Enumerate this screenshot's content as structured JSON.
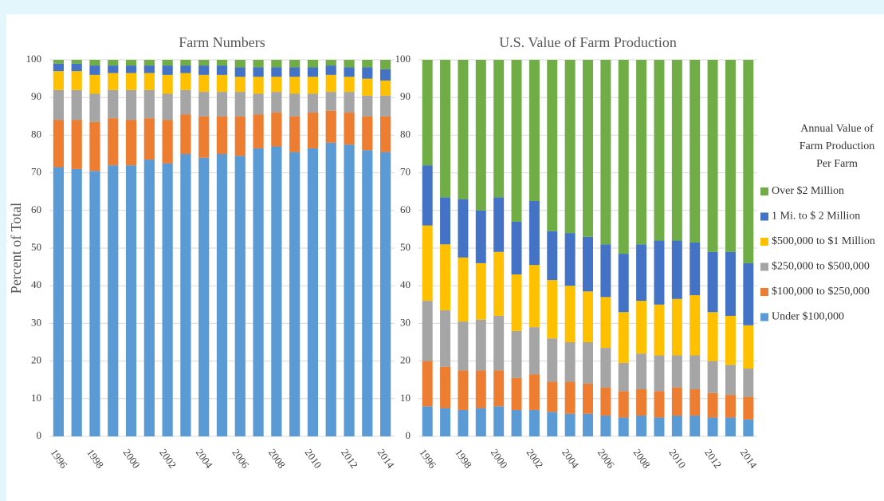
{
  "chart_data": [
    {
      "type": "stacked_bar",
      "title": "Farm Numbers",
      "y_label": "Percent of Total",
      "categories": [
        "1996",
        null,
        "1998",
        null,
        "2000",
        null,
        "2002",
        null,
        "2004",
        null,
        "2006",
        null,
        "2008",
        null,
        "2010",
        null,
        "2012",
        null,
        "2014"
      ],
      "ylim": [
        0,
        100
      ],
      "yticks": [
        0,
        10,
        20,
        30,
        40,
        50,
        60,
        70,
        80,
        90,
        100
      ],
      "grid": true,
      "series": [
        {
          "color": "#5b9bd5",
          "values": [
            71.5,
            71,
            70.5,
            72,
            72,
            73.5,
            72.5,
            75,
            74,
            75,
            74.5,
            76.5,
            77,
            75.5,
            76.5,
            78,
            77.5,
            76,
            75.5
          ]
        },
        {
          "color": "#ed7d31",
          "values": [
            12.5,
            13,
            13,
            12.5,
            12,
            11,
            11.5,
            10.5,
            11,
            10,
            10.5,
            9,
            9,
            9.5,
            9.5,
            8.5,
            8.5,
            9,
            9.5
          ]
        },
        {
          "color": "#a5a5a5",
          "values": [
            8,
            8,
            7.5,
            7.5,
            8,
            7.5,
            7,
            6.5,
            6.5,
            6.5,
            6.5,
            5.5,
            5.5,
            6,
            5,
            5,
            5.5,
            5.5,
            5.5
          ]
        },
        {
          "color": "#ffc000",
          "values": [
            5,
            5,
            5,
            4.5,
            4.5,
            4.5,
            5,
            4.5,
            4.5,
            4.5,
            4,
            4.5,
            4,
            4.5,
            4.5,
            4.5,
            4,
            4.5,
            4
          ]
        },
        {
          "color": "#4472c4",
          "values": [
            2,
            2,
            2.5,
            2,
            2,
            2,
            2.5,
            2,
            2.5,
            2.5,
            2.5,
            2.5,
            2.5,
            2.5,
            2.5,
            2.5,
            2.5,
            3,
            3
          ]
        },
        {
          "color": "#70ad47",
          "values": [
            1,
            1,
            1.5,
            1.5,
            1.5,
            1.5,
            1.5,
            1.5,
            1.5,
            1.5,
            2,
            2,
            2,
            2,
            2,
            1.5,
            2,
            2,
            2.5
          ]
        }
      ]
    },
    {
      "type": "stacked_bar",
      "title": "U.S. Value of Farm Production",
      "categories": [
        "1996",
        null,
        "1998",
        null,
        "2000",
        null,
        "2002",
        null,
        "2004",
        null,
        "2006",
        null,
        "2008",
        null,
        "2010",
        null,
        "2012",
        null,
        "2014"
      ],
      "ylim": [
        0,
        100
      ],
      "yticks": [
        0,
        10,
        20,
        30,
        40,
        50,
        60,
        70,
        80,
        90,
        100
      ],
      "grid": true,
      "legend": "right",
      "legend_title": [
        "Annual Value of",
        "Farm Production",
        "Per Farm"
      ],
      "series": [
        {
          "name": "Under $100,000",
          "color": "#5b9bd5",
          "values": [
            8,
            7.5,
            7,
            7.5,
            8,
            7,
            7,
            6.5,
            6,
            6,
            5.5,
            5,
            5.5,
            5,
            5.5,
            5.5,
            5,
            5,
            4.5
          ]
        },
        {
          "name": "$100,000 to $250,000",
          "color": "#ed7d31",
          "values": [
            12,
            11,
            10.5,
            10,
            9.5,
            8.5,
            9.5,
            8,
            8.5,
            8,
            7.5,
            7,
            7,
            7,
            7.5,
            7,
            6.5,
            6,
            6
          ]
        },
        {
          "name": "$250,000 to $500,000",
          "color": "#a5a5a5",
          "values": [
            16,
            15,
            13,
            13.5,
            14.5,
            12.5,
            12.5,
            11.5,
            10.5,
            11,
            10.5,
            7.5,
            9.5,
            9.5,
            8.5,
            9,
            8.5,
            8,
            7.5
          ]
        },
        {
          "name": "$500,000 to $1 Million",
          "color": "#ffc000",
          "values": [
            20,
            17.5,
            17,
            15,
            17,
            15,
            16.5,
            15.5,
            15,
            13.5,
            13.5,
            13.5,
            14,
            13.5,
            15,
            16,
            13,
            13,
            11.5
          ]
        },
        {
          "name": "1 Mi. to $ 2  Million",
          "color": "#4472c4",
          "values": [
            16,
            12.5,
            15.5,
            14,
            14.5,
            14,
            17,
            13,
            14,
            14.5,
            14,
            15.5,
            15,
            17,
            15.5,
            14,
            16,
            17,
            16.5
          ]
        },
        {
          "name": "Over $2  Million",
          "color": "#70ad47",
          "values": [
            28,
            36.5,
            37,
            40,
            36.5,
            43,
            37.5,
            45.5,
            46,
            47,
            49,
            51.5,
            49,
            48,
            48,
            48.5,
            51,
            51,
            54
          ]
        }
      ]
    }
  ]
}
